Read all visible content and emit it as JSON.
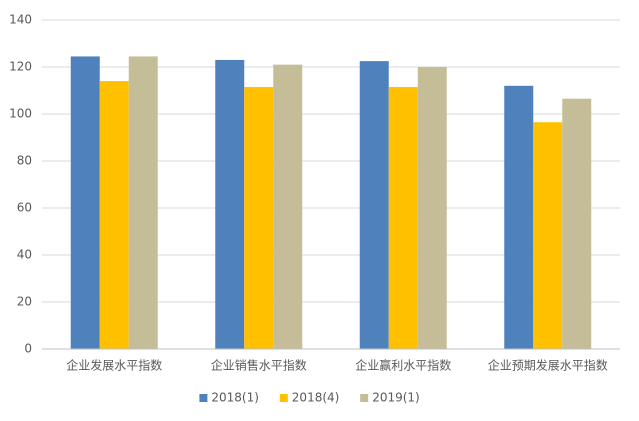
{
  "chart_data": {
    "type": "bar",
    "categories": [
      "企业发展水平指数",
      "企业销售水平指数",
      "企业赢利水平指数",
      "企业预期发展水平指数"
    ],
    "series": [
      {
        "name": "2018(1)",
        "color": "#4f81bd",
        "values": [
          124.5,
          123,
          122.5,
          112
        ]
      },
      {
        "name": "2018(4)",
        "color": "#ffc000",
        "values": [
          114,
          111.5,
          111.5,
          96.5
        ]
      },
      {
        "name": "2019(1)",
        "color": "#c4bd97",
        "values": [
          124.5,
          121,
          120,
          106.5
        ]
      }
    ],
    "ylim": [
      0,
      140
    ],
    "yticks": [
      0,
      20,
      40,
      60,
      80,
      100,
      120,
      140
    ],
    "grid": true,
    "legend": "bottom"
  }
}
